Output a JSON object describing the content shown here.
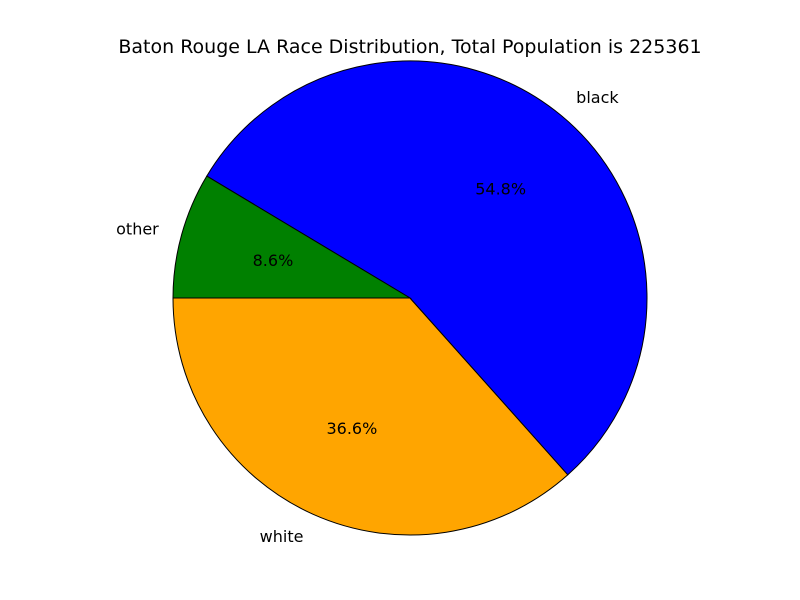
{
  "chart_data": {
    "type": "pie",
    "title": "Baton Rouge LA Race Distribution, Total Population is 225361",
    "slices": [
      {
        "label": "black",
        "value": 54.8,
        "pct_label": "54.8%",
        "color": "#0000ff"
      },
      {
        "label": "white",
        "value": 36.6,
        "pct_label": "36.6%",
        "color": "#ffa500"
      },
      {
        "label": "other",
        "value": 8.6,
        "pct_label": "8.6%",
        "color": "#008000"
      }
    ],
    "start_angle_deg": 180,
    "direction": "counterclockwise"
  }
}
